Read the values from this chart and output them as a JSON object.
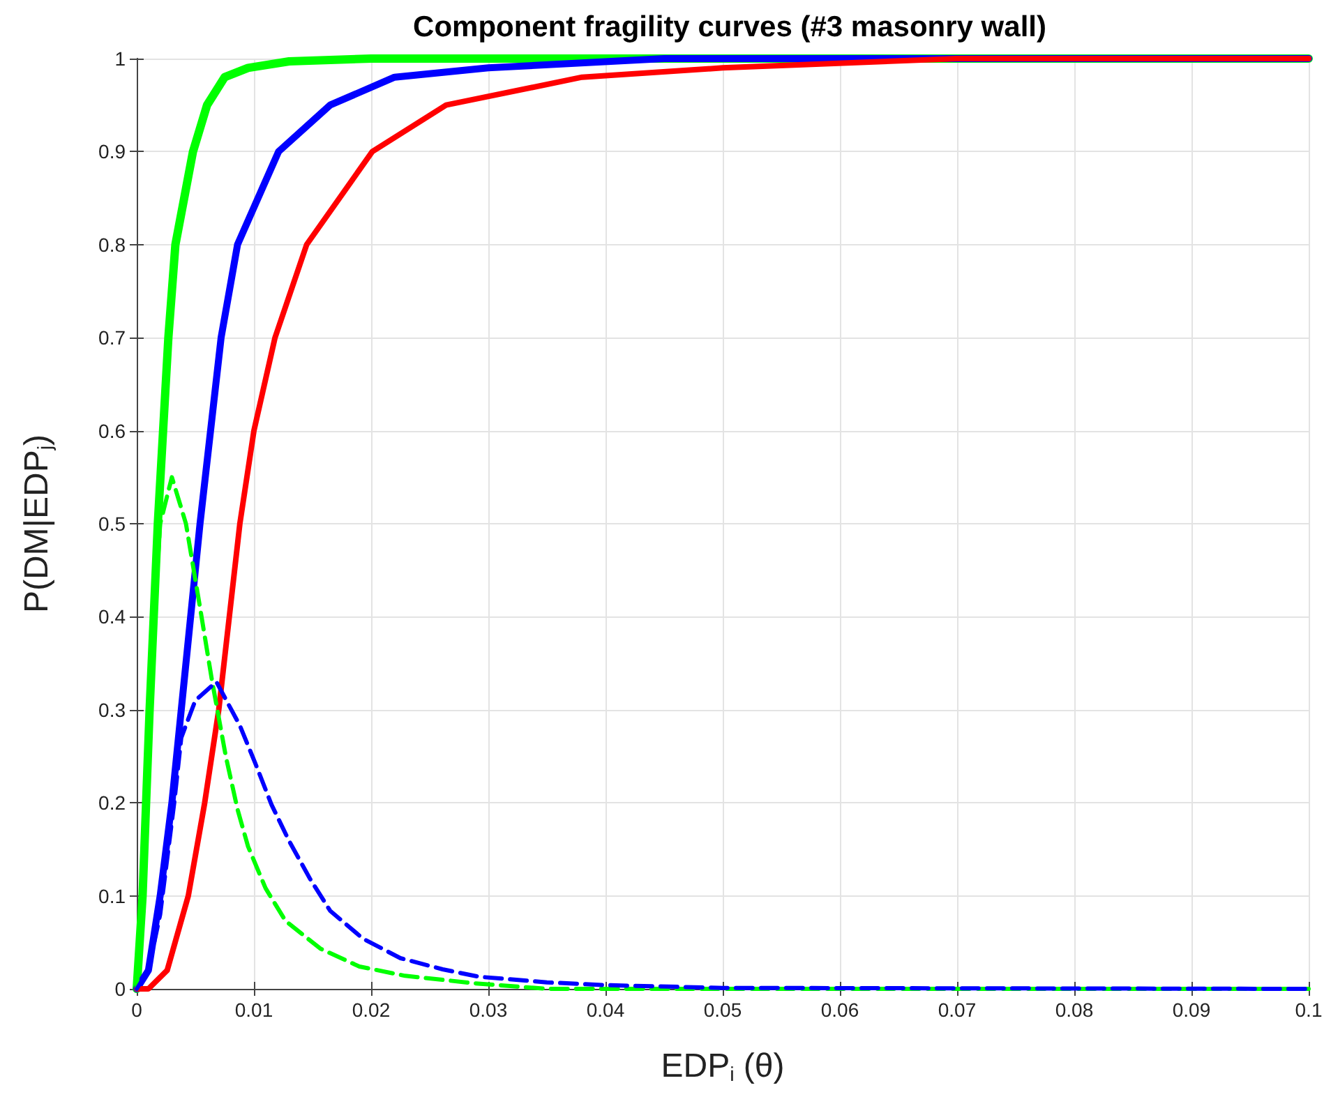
{
  "chart_data": {
    "type": "line",
    "title": "Component fragility curves (#3 masonry wall)",
    "xlabel": "EDP$_{i}$ (θ)",
    "ylabel": "P(DM|EDP$_{j}$)",
    "xlim": [
      0,
      0.1
    ],
    "xticks": [
      0,
      0.01,
      0.02,
      0.03,
      0.04,
      0.05,
      0.06,
      0.07,
      0.08,
      0.09,
      0.1
    ],
    "ylim": [
      0,
      1
    ],
    "yticks": [
      0,
      0.1,
      0.2,
      0.3,
      0.4,
      0.5,
      0.6,
      0.7,
      0.8,
      0.9,
      1
    ],
    "grid": true,
    "legend": false,
    "marker": "none",
    "series": [
      {
        "color": "#00ff00",
        "line_style": "solid",
        "x": [
          0,
          0.0005,
          0.0011,
          0.0018,
          0.0027,
          0.0033,
          0.0048,
          0.006,
          0.0075,
          0.0095,
          0.013,
          0.02,
          0.03,
          0.1
        ],
        "values": [
          0,
          0.1,
          0.3,
          0.5,
          0.7,
          0.8,
          0.9,
          0.95,
          0.98,
          0.99,
          0.997,
          1,
          1,
          1
        ]
      },
      {
        "color": "#0000ff",
        "line_style": "solid",
        "x": [
          0,
          0.001,
          0.002,
          0.003,
          0.0038,
          0.0054,
          0.0072,
          0.0086,
          0.0121,
          0.0165,
          0.022,
          0.03,
          0.045,
          0.1
        ],
        "values": [
          0,
          0.02,
          0.1,
          0.2,
          0.3,
          0.5,
          0.7,
          0.8,
          0.9,
          0.95,
          0.98,
          0.99,
          1,
          1
        ]
      },
      {
        "color": "#ff0000",
        "line_style": "solid",
        "x": [
          0,
          0.001,
          0.0026,
          0.0044,
          0.0058,
          0.007,
          0.0079,
          0.0088,
          0.01,
          0.0118,
          0.0145,
          0.0201,
          0.0264,
          0.038,
          0.05,
          0.07,
          0.1
        ],
        "values": [
          0,
          0,
          0.02,
          0.1,
          0.2,
          0.3,
          0.4,
          0.5,
          0.6,
          0.7,
          0.8,
          0.9,
          0.95,
          0.98,
          0.99,
          1,
          1
        ]
      },
      {
        "color": "#00ff00",
        "line_style": "dashed",
        "x": [
          0,
          0.0005,
          0.001,
          0.002,
          0.003,
          0.0042,
          0.0054,
          0.0064,
          0.0076,
          0.0086,
          0.0095,
          0.011,
          0.0127,
          0.0157,
          0.019,
          0.0229,
          0.0288,
          0.035,
          0.1
        ],
        "values": [
          0,
          0.1,
          0.3,
          0.5,
          0.55,
          0.5,
          0.41,
          0.333,
          0.25,
          0.193,
          0.153,
          0.108,
          0.073,
          0.043,
          0.024,
          0.014,
          0.006,
          0,
          0
        ]
      },
      {
        "color": "#0000ff",
        "line_style": "dashed",
        "x": [
          0,
          0.001,
          0.002,
          0.0032,
          0.0038,
          0.005,
          0.0068,
          0.0088,
          0.0101,
          0.0115,
          0.013,
          0.0148,
          0.0165,
          0.0193,
          0.0225,
          0.0261,
          0.0292,
          0.035,
          0.04,
          0.05,
          0.1
        ],
        "values": [
          0,
          0.02,
          0.08,
          0.2,
          0.27,
          0.31,
          0.33,
          0.283,
          0.243,
          0.198,
          0.159,
          0.118,
          0.084,
          0.054,
          0.033,
          0.021,
          0.013,
          0.007,
          0.004,
          0.001,
          0
        ]
      }
    ]
  }
}
